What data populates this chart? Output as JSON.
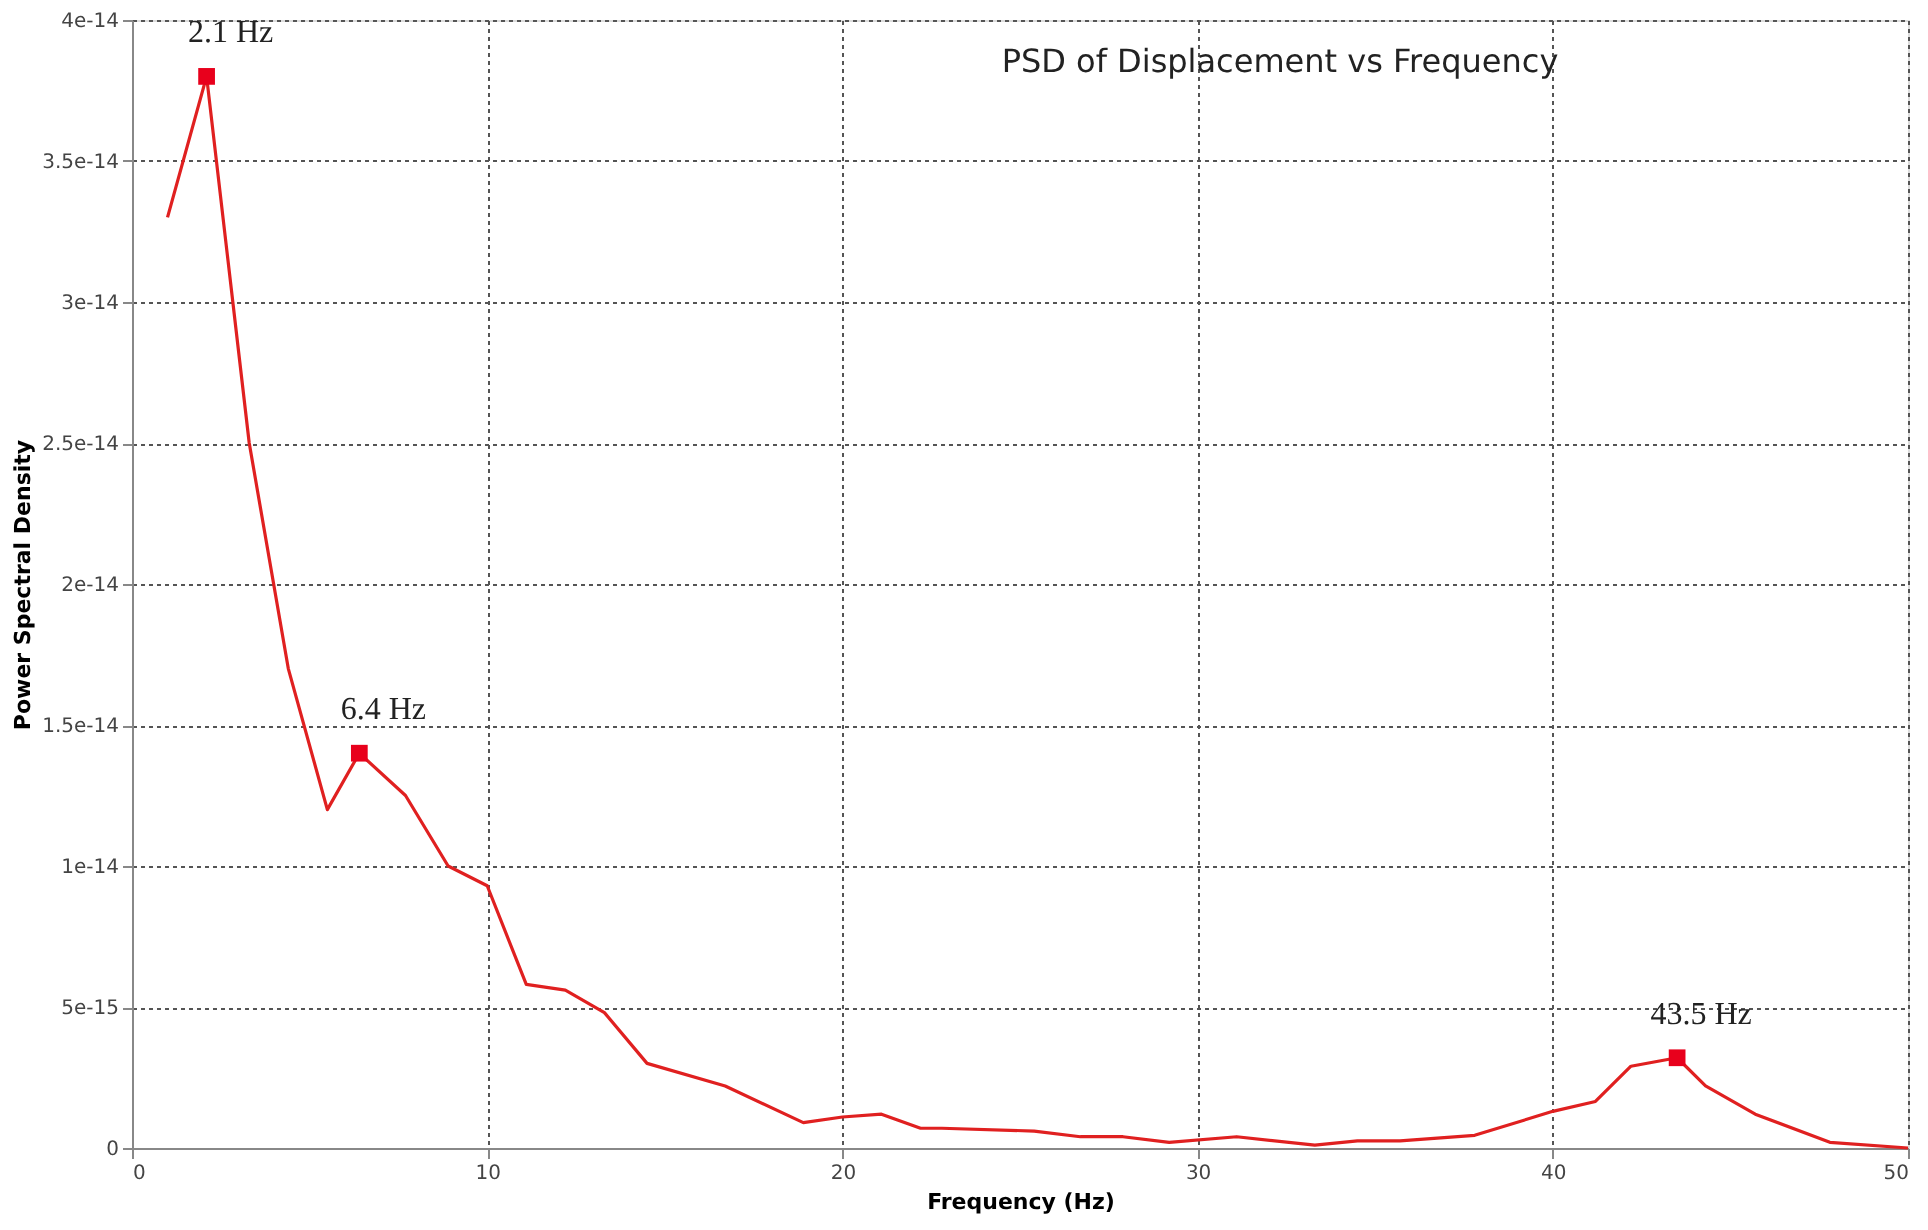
{
  "chart_data": {
    "type": "line",
    "title": "PSD of Displacement vs Frequency",
    "xlabel": "Frequency (Hz)",
    "ylabel": "Power Spectral Density",
    "xlim": [
      0,
      50
    ],
    "xticks": [
      0,
      10,
      20,
      30,
      40,
      50
    ],
    "ylim": [
      0,
      4e-14
    ],
    "yticks": [
      0,
      {
        "value": 5e-15,
        "label": "5e-15"
      },
      {
        "value": 1e-14,
        "label": "1e-14"
      },
      {
        "value": 1.5e-14,
        "label": "1.5e-14"
      },
      {
        "value": 2e-14,
        "label": "2e-14"
      },
      {
        "value": 2.5e-14,
        "label": "2.5e-14"
      },
      {
        "value": 3e-14,
        "label": "3e-14"
      },
      {
        "value": 3.5e-14,
        "label": "3.5e-14"
      },
      {
        "value": 4e-14,
        "label": "4e-14"
      }
    ],
    "grid": true,
    "series": [
      {
        "color": "#e02020",
        "line_style": "solid",
        "marker": "none",
        "x": [
          1.0,
          2.1,
          3.3,
          4.4,
          5.5,
          6.4,
          7.7,
          8.9,
          10.0,
          11.1,
          12.2,
          13.3,
          14.5,
          16.7,
          18.9,
          20.0,
          21.1,
          22.2,
          22.8,
          25.4,
          26.7,
          27.9,
          29.2,
          31.1,
          33.3,
          34.5,
          35.7,
          37.8,
          40.0,
          41.2,
          42.2,
          43.5,
          44.3,
          45.7,
          47.8,
          50.0
        ],
        "values": [
          3.3e-14,
          3.8e-14,
          2.5e-14,
          1.7e-14,
          1.2e-14,
          1.4e-14,
          1.25e-14,
          1e-14,
          9.3e-15,
          5.8e-15,
          5.6e-15,
          4.8e-15,
          3e-15,
          2.2e-15,
          9e-16,
          1.1e-15,
          1.2e-15,
          7e-16,
          7e-16,
          6e-16,
          4e-16,
          4e-16,
          2e-16,
          4e-16,
          1e-16,
          2.5e-16,
          2.5e-16,
          4.5e-16,
          1.3e-15,
          1.65e-15,
          2.9e-15,
          3.2e-15,
          2.2e-15,
          1.2e-15,
          2e-16,
          0
        ]
      },
      {
        "type": "scatter",
        "color": "#e8001c",
        "marker": "square",
        "x": [
          2.1,
          6.4,
          43.5
        ],
        "values": [
          3.8e-14,
          1.4e-14,
          3.2e-15
        ]
      }
    ],
    "annotations": [
      {
        "text": "2.1 Hz",
        "x": 2.1,
        "y": 3.8e-14
      },
      {
        "text": "6.4 Hz",
        "x": 6.4,
        "y": 1.4e-14
      },
      {
        "text": "43.5 Hz",
        "x": 43.5,
        "y": 3.2e-15
      }
    ]
  }
}
